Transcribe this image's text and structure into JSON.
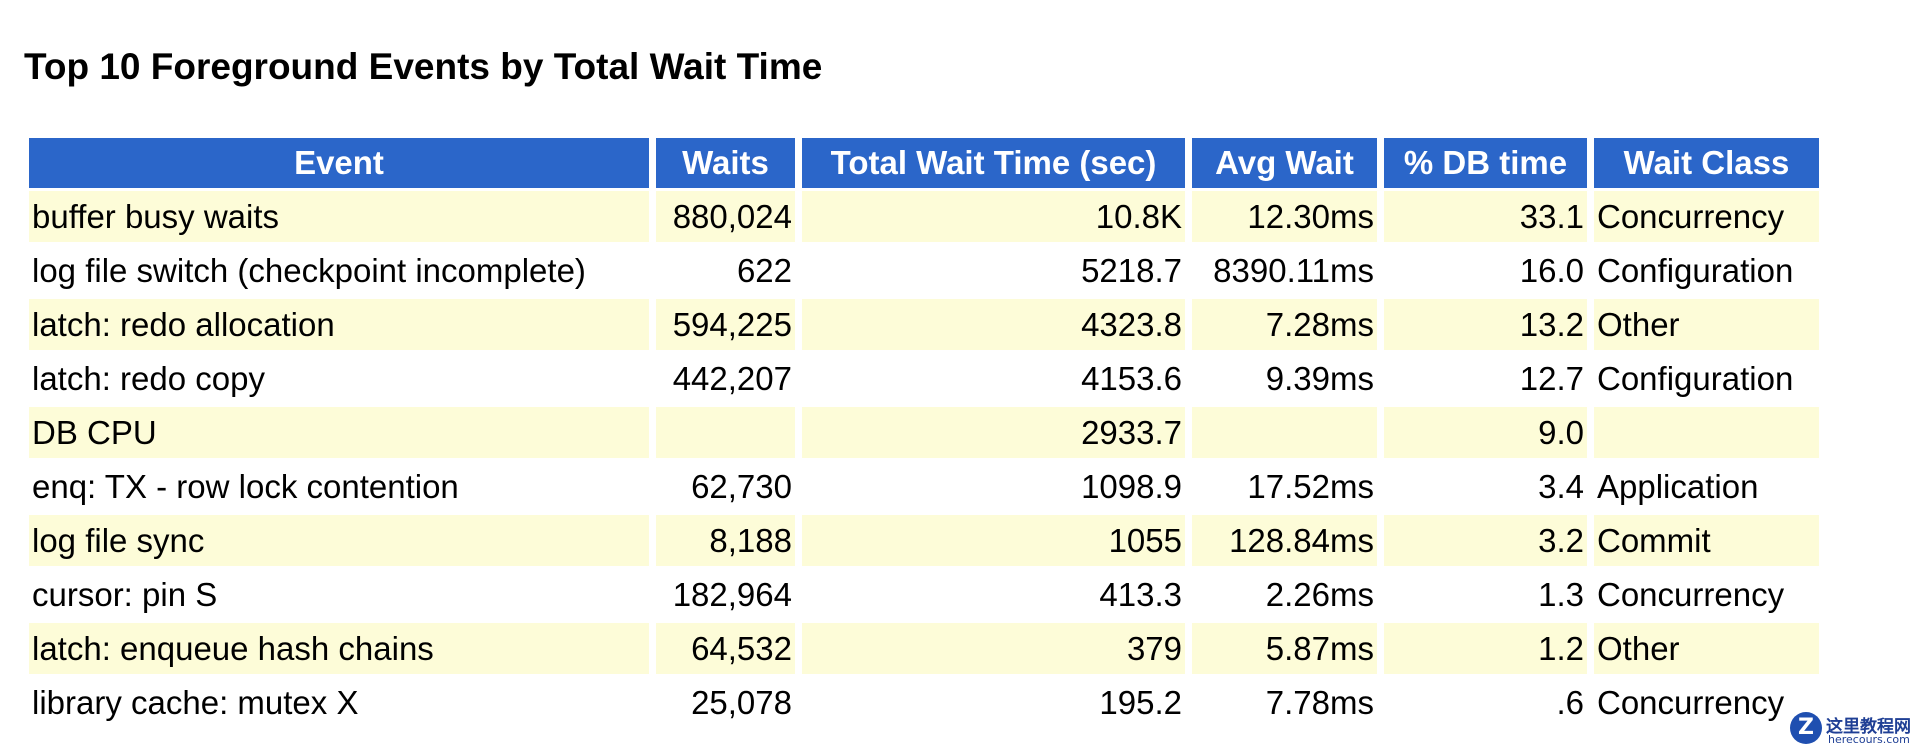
{
  "header": {
    "title": "Top 10 Foreground Events by Total Wait Time"
  },
  "table": {
    "columns": [
      "Event",
      "Waits",
      "Total Wait Time (sec)",
      "Avg Wait",
      "% DB time",
      "Wait Class"
    ],
    "rows": [
      [
        "buffer busy waits",
        "880,024",
        "10.8K",
        "12.30ms",
        "33.1",
        "Concurrency"
      ],
      [
        "log file switch (checkpoint incomplete)",
        "622",
        "5218.7",
        "8390.11ms",
        "16.0",
        "Configuration"
      ],
      [
        "latch: redo allocation",
        "594,225",
        "4323.8",
        "7.28ms",
        "13.2",
        "Other"
      ],
      [
        "latch: redo copy",
        "442,207",
        "4153.6",
        "9.39ms",
        "12.7",
        "Configuration"
      ],
      [
        "DB CPU",
        null,
        "2933.7",
        null,
        "9.0",
        null
      ],
      [
        "enq: TX - row lock contention",
        "62,730",
        "1098.9",
        "17.52ms",
        "3.4",
        "Application"
      ],
      [
        "log file sync",
        "8,188",
        "1055",
        "128.84ms",
        "3.2",
        "Commit"
      ],
      [
        "cursor: pin S",
        "182,964",
        "413.3",
        "2.26ms",
        "1.3",
        "Concurrency"
      ],
      [
        "latch: enqueue hash chains",
        "64,532",
        "379",
        "5.87ms",
        "1.2",
        "Other"
      ],
      [
        "library cache: mutex X",
        "25,078",
        "195.2",
        "7.78ms",
        ".6",
        "Concurrency"
      ]
    ]
  },
  "watermark": {
    "name": "这里教程网",
    "site": "herecours.com"
  }
}
